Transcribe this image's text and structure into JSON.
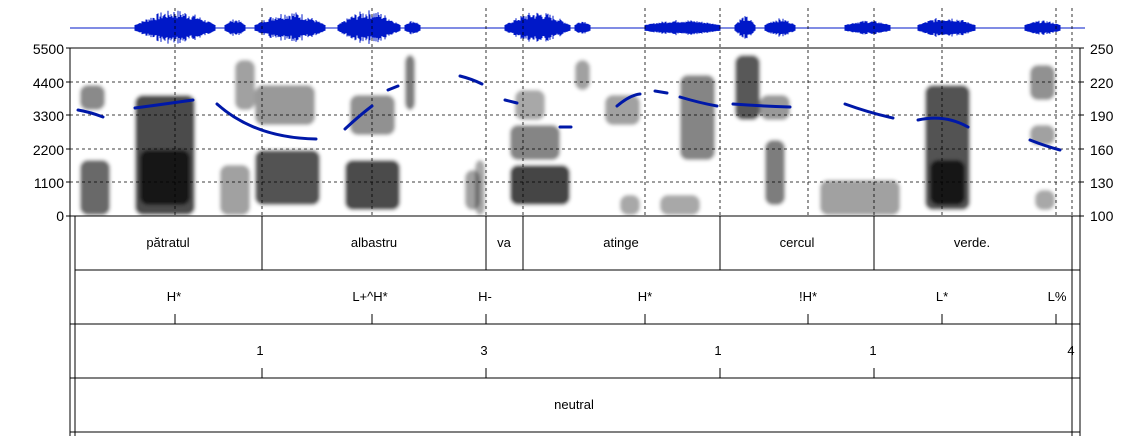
{
  "chart_data": {
    "type": "spectrogram",
    "frequency_axis": {
      "ticks": [
        "5500",
        "4400",
        "3300",
        "2200",
        "1100",
        "0"
      ],
      "range": [
        0,
        5500
      ]
    },
    "f0_axis": {
      "ticks": [
        "250",
        "220",
        "190",
        "160",
        "130",
        "100"
      ],
      "range": [
        100,
        250
      ]
    },
    "grid": true,
    "pitch_track_color": "#0018a8",
    "waveform_color": "#0018c8"
  },
  "tiers": {
    "words": [
      "pătratul",
      "albastru",
      "va",
      "atinge",
      "cercul",
      "verde."
    ],
    "tones": [
      "H*",
      "L+^H*",
      "H-",
      "H*",
      "!H*",
      "L*",
      "L%"
    ],
    "breaks": [
      "1",
      "3",
      "1",
      "1",
      "4"
    ],
    "misc": [
      "neutral"
    ]
  }
}
